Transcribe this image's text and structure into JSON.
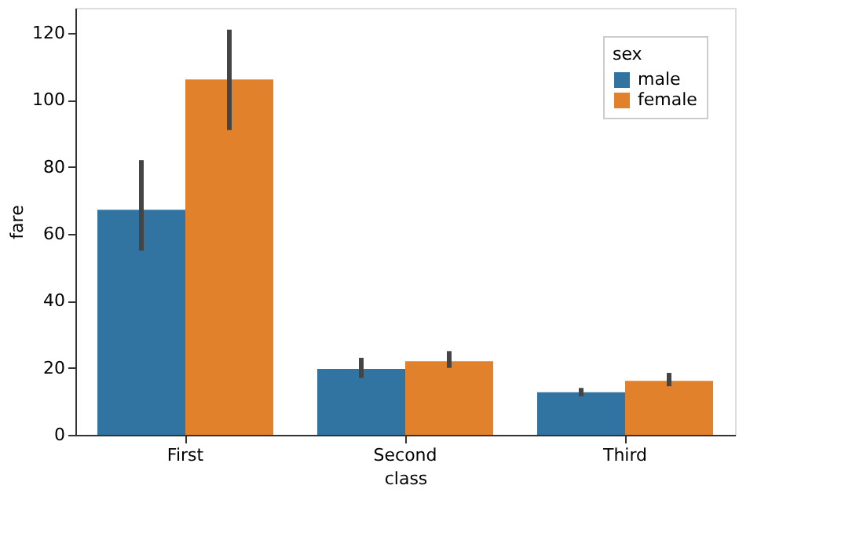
{
  "chart_data": {
    "type": "bar",
    "xlabel": "class",
    "ylabel": "fare",
    "legend_title": "sex",
    "categories": [
      "First",
      "Second",
      "Third"
    ],
    "series": [
      {
        "name": "male",
        "color": "#3274a1",
        "values": [
          67.2,
          19.7,
          12.7
        ],
        "errors": [
          [
            55,
            82
          ],
          [
            17,
            23
          ],
          [
            11.5,
            14
          ]
        ]
      },
      {
        "name": "female",
        "color": "#e1812c",
        "values": [
          106.1,
          22.0,
          16.1
        ],
        "errors": [
          [
            91,
            121
          ],
          [
            20,
            25
          ],
          [
            14.5,
            18.5
          ]
        ]
      }
    ],
    "ylim": [
      0,
      127.5
    ],
    "yticks": [
      0,
      20,
      40,
      60,
      80,
      100,
      120
    ],
    "grid": false,
    "legend": "top right"
  }
}
